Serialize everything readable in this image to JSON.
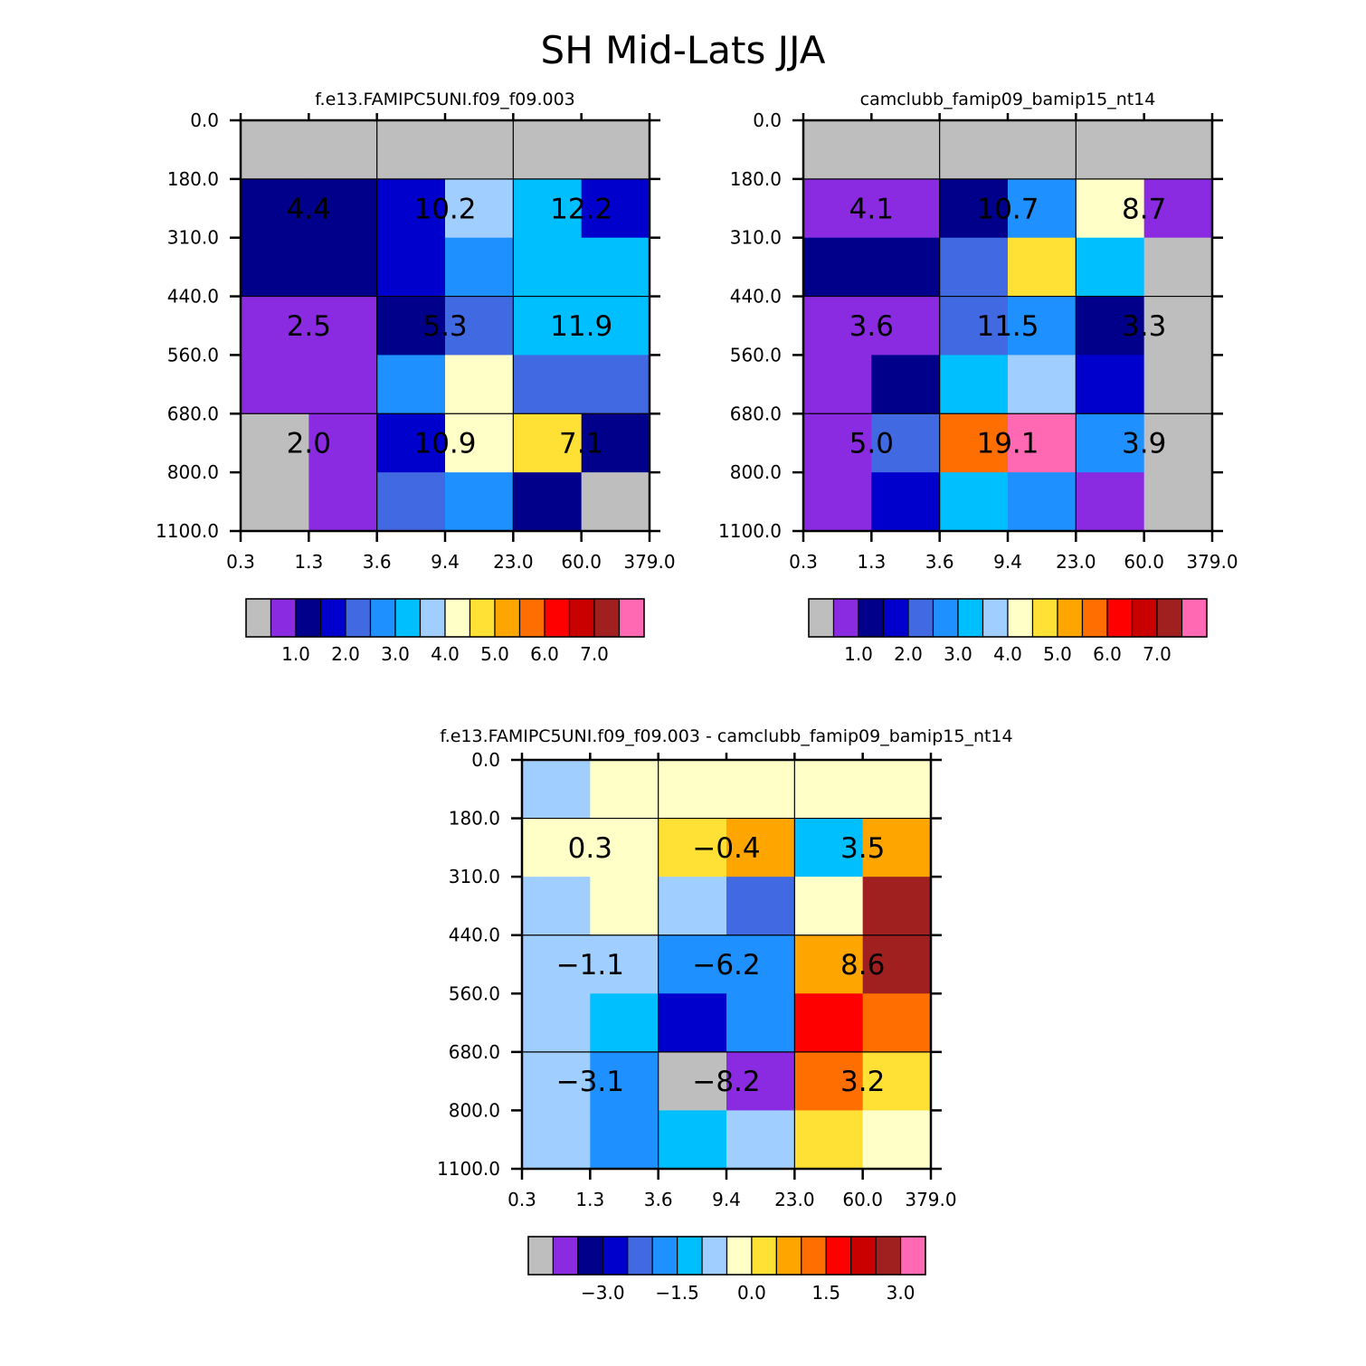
{
  "figure_title": "SH Mid-Lats JJA",
  "colors": {
    "palette": [
      "#bebebe",
      "#8a2be2",
      "#00008b",
      "#0000cd",
      "#4169e1",
      "#1e90ff",
      "#00bfff",
      "#a0cfff",
      "#ffffc8",
      "#ffe135",
      "#ffa500",
      "#ff6e00",
      "#ff0000",
      "#c80000",
      "#a02020",
      "#ff69b4"
    ],
    "grid": "#000000"
  },
  "chart_data": [
    {
      "type": "heatmap",
      "title": "f.e13.FAMIPC5UNI.f09_f09.003",
      "x_tick_labels": [
        "0.3",
        "1.3",
        "3.6",
        "9.4",
        "23.0",
        "60.0",
        "379.0"
      ],
      "y_tick_labels": [
        "0.0",
        "180.0",
        "310.0",
        "440.0",
        "560.0",
        "680.0",
        "800.0",
        "1100.0"
      ],
      "cells": [
        [
          0,
          0,
          0,
          0,
          0,
          0
        ],
        [
          2,
          2,
          3,
          7,
          6,
          3
        ],
        [
          2,
          2,
          3,
          5,
          6,
          6
        ],
        [
          1,
          1,
          2,
          4,
          6,
          6
        ],
        [
          1,
          1,
          5,
          8,
          4,
          4
        ],
        [
          0,
          1,
          3,
          8,
          9,
          2
        ],
        [
          0,
          1,
          4,
          5,
          2,
          0
        ]
      ],
      "boxes": [
        {
          "label": "4.4"
        },
        {
          "label": "10.2"
        },
        {
          "label": "12.2"
        },
        {
          "label": "2.5"
        },
        {
          "label": "5.3"
        },
        {
          "label": "11.9"
        },
        {
          "label": "2.0"
        },
        {
          "label": "10.9"
        },
        {
          "label": "7.1"
        }
      ],
      "legend": {
        "labels": [
          "1.0",
          "2.0",
          "3.0",
          "4.0",
          "5.0",
          "6.0",
          "7.0"
        ]
      }
    },
    {
      "type": "heatmap",
      "title": "camclubb_famip09_bamip15_nt14",
      "x_tick_labels": [
        "0.3",
        "1.3",
        "3.6",
        "9.4",
        "23.0",
        "60.0",
        "379.0"
      ],
      "y_tick_labels": [
        "0.0",
        "180.0",
        "310.0",
        "440.0",
        "560.0",
        "680.0",
        "800.0",
        "1100.0"
      ],
      "cells": [
        [
          0,
          0,
          0,
          0,
          0,
          0
        ],
        [
          1,
          1,
          2,
          5,
          8,
          1
        ],
        [
          2,
          2,
          4,
          9,
          6,
          0
        ],
        [
          1,
          1,
          4,
          5,
          2,
          0
        ],
        [
          1,
          2,
          6,
          7,
          3,
          0
        ],
        [
          1,
          4,
          11,
          15,
          5,
          0
        ],
        [
          1,
          3,
          6,
          5,
          1,
          0
        ]
      ],
      "boxes": [
        {
          "label": "4.1"
        },
        {
          "label": "10.7"
        },
        {
          "label": "8.7"
        },
        {
          "label": "3.6"
        },
        {
          "label": "11.5"
        },
        {
          "label": "3.3"
        },
        {
          "label": "5.0"
        },
        {
          "label": "19.1"
        },
        {
          "label": "3.9"
        }
      ],
      "legend": {
        "labels": [
          "1.0",
          "2.0",
          "3.0",
          "4.0",
          "5.0",
          "6.0",
          "7.0"
        ]
      }
    },
    {
      "type": "heatmap",
      "title": "f.e13.FAMIPC5UNI.f09_f09.003 - camclubb_famip09_bamip15_nt14",
      "x_tick_labels": [
        "0.3",
        "1.3",
        "3.6",
        "9.4",
        "23.0",
        "60.0",
        "379.0"
      ],
      "y_tick_labels": [
        "0.0",
        "180.0",
        "310.0",
        "440.0",
        "560.0",
        "680.0",
        "800.0",
        "1100.0"
      ],
      "cells": [
        [
          7,
          8,
          8,
          8,
          8,
          8
        ],
        [
          8,
          8,
          9,
          10,
          6,
          10
        ],
        [
          7,
          8,
          7,
          4,
          8,
          14
        ],
        [
          7,
          7,
          5,
          5,
          10,
          14
        ],
        [
          7,
          6,
          3,
          5,
          12,
          11
        ],
        [
          7,
          5,
          0,
          1,
          11,
          9
        ],
        [
          7,
          5,
          6,
          7,
          9,
          8
        ]
      ],
      "boxes": [
        {
          "label": "0.3"
        },
        {
          "label": "-0.4"
        },
        {
          "label": "3.5"
        },
        {
          "label": "-1.1"
        },
        {
          "label": "-6.2"
        },
        {
          "label": "8.6"
        },
        {
          "label": "-3.1"
        },
        {
          "label": "-8.2"
        },
        {
          "label": "3.2"
        }
      ],
      "legend": {
        "labels": [
          "-3.0",
          "-1.5",
          "0.0",
          "1.5",
          "3.0"
        ]
      }
    }
  ]
}
